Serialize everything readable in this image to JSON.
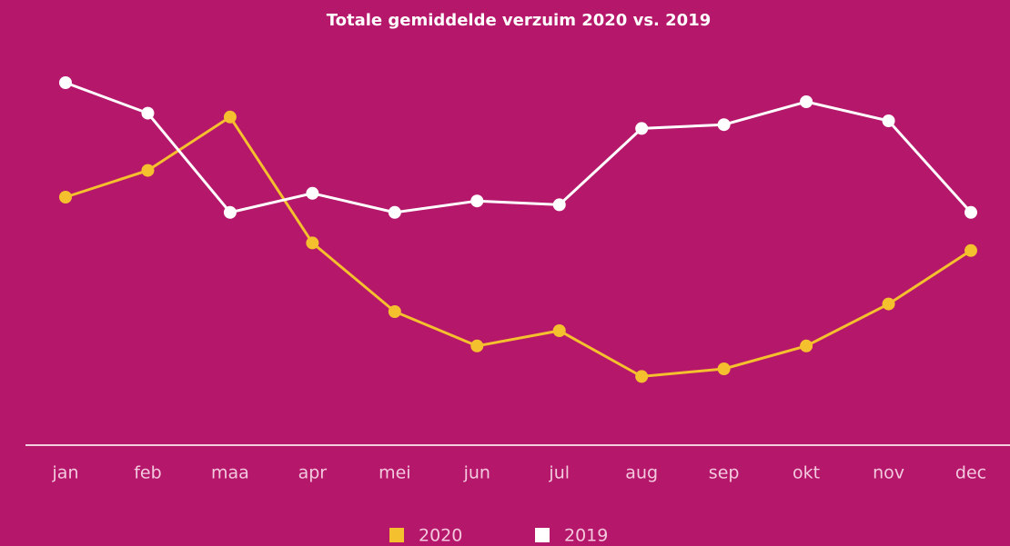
{
  "chart_data": {
    "type": "line",
    "title": "Totale gemiddelde verzuim 2020 vs. 2019",
    "categories": [
      "jan",
      "feb",
      "maa",
      "apr",
      "mei",
      "jun",
      "jul",
      "aug",
      "sep",
      "okt",
      "nov",
      "dec"
    ],
    "series": [
      {
        "name": "2020",
        "color": "#f5c02d",
        "values": [
          65,
          72,
          86,
          53,
          35,
          26,
          30,
          18,
          20,
          26,
          37,
          51
        ]
      },
      {
        "name": "2019",
        "color": "#ffffff",
        "values": [
          95,
          87,
          61,
          66,
          61,
          64,
          63,
          83,
          84,
          90,
          85,
          61
        ]
      }
    ],
    "ylim": [
      0,
      100
    ]
  }
}
